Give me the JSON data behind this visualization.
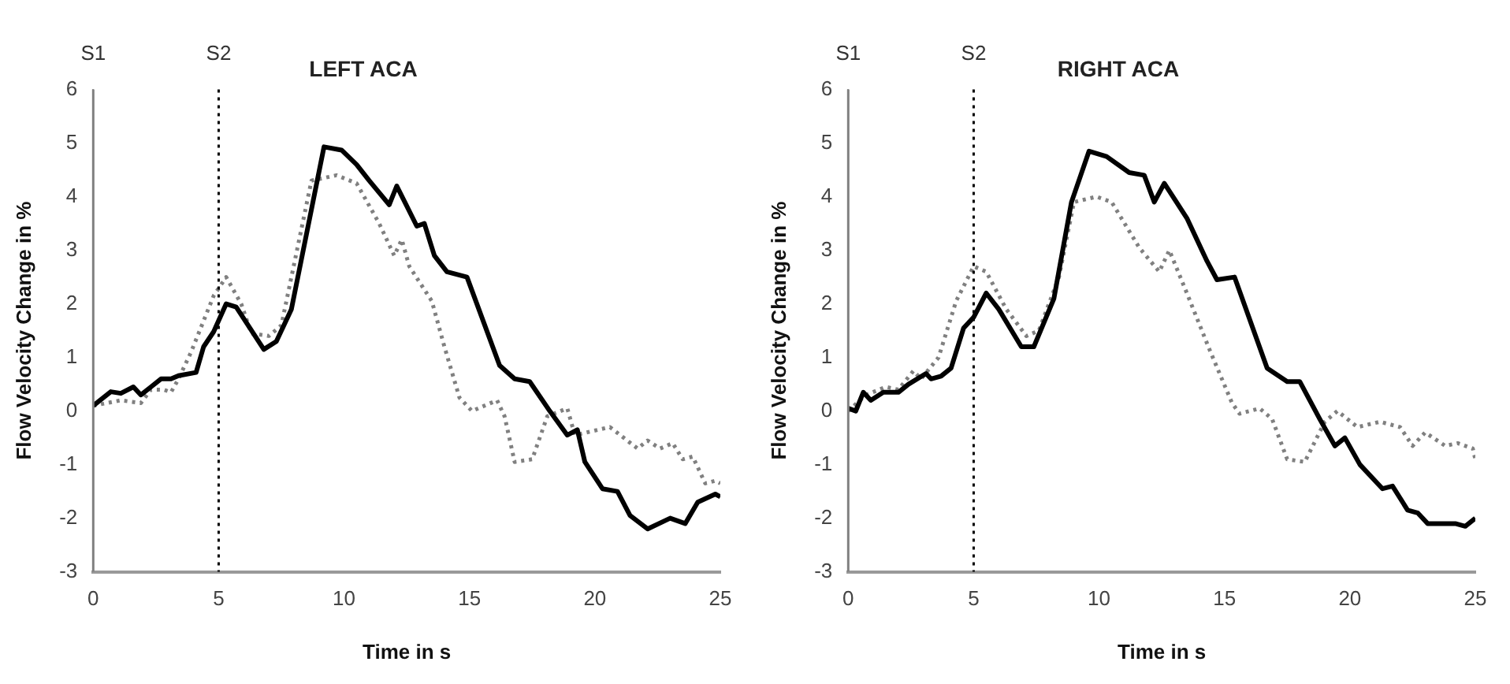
{
  "chart_data": [
    {
      "type": "line",
      "title": "LEFT ACA",
      "xlabel": "Time in s",
      "ylabel": "Flow Velocity Change in %",
      "marker": "none",
      "grid": false,
      "xlim": [
        0,
        25
      ],
      "xticks": [
        0,
        5,
        10,
        15,
        20,
        25
      ],
      "ylim": [
        -3,
        6
      ],
      "yticks": [
        -3,
        -2,
        -1,
        0,
        1,
        2,
        3,
        4,
        5,
        6
      ],
      "ref_lines": [
        {
          "axis": "x",
          "value": 0,
          "label": "S1",
          "color": "#808080",
          "line_style": "solid"
        },
        {
          "axis": "x",
          "value": 5,
          "label": "S2",
          "color": "#000000",
          "line_style": "dotted"
        }
      ],
      "series": [
        {
          "color": "#000000",
          "line_style": "solid",
          "x": [
            0,
            0.7,
            1.1,
            1.6,
            1.9,
            2.3,
            2.7,
            3.1,
            3.4,
            4.1,
            4.4,
            4.8,
            5.3,
            5.7,
            6.8,
            7.3,
            7.9,
            9.2,
            9.9,
            10.5,
            11.0,
            11.8,
            12.1,
            12.9,
            13.2,
            13.6,
            14.1,
            14.9,
            16.2,
            16.8,
            17.4,
            18.2,
            18.9,
            19.3,
            19.6,
            20.3,
            20.9,
            21.4,
            22.1,
            23.0,
            23.6,
            24.1,
            24.8,
            25
          ],
          "values": [
            0.1,
            0.36,
            0.33,
            0.45,
            0.3,
            0.45,
            0.6,
            0.6,
            0.66,
            0.72,
            1.2,
            1.48,
            2.0,
            1.94,
            1.15,
            1.3,
            1.9,
            4.93,
            4.87,
            4.6,
            4.3,
            3.85,
            4.2,
            3.45,
            3.5,
            2.9,
            2.6,
            2.5,
            0.85,
            0.6,
            0.55,
            0,
            -0.45,
            -0.35,
            -0.95,
            -1.45,
            -1.5,
            -1.95,
            -2.2,
            -2.0,
            -2.1,
            -1.7,
            -1.55,
            -1.6
          ]
        },
        {
          "color": "#808080",
          "line_style": "dotted",
          "x": [
            0,
            1.1,
            1.9,
            2.3,
            2.8,
            3.1,
            3.4,
            3.9,
            4.8,
            5.3,
            5.9,
            6.3,
            7.0,
            7.5,
            8.7,
            9.7,
            10.5,
            11.4,
            12.0,
            12.3,
            12.6,
            13.5,
            14.0,
            14.6,
            15.1,
            16.1,
            16.4,
            16.8,
            17.5,
            18.1,
            18.9,
            19.2,
            20.6,
            21.7,
            22.1,
            22.6,
            23.1,
            23.5,
            23.9,
            24.4,
            24.8,
            25
          ],
          "values": [
            0.1,
            0.2,
            0.15,
            0.4,
            0.4,
            0.35,
            0.6,
            1.1,
            2.15,
            2.5,
            2.0,
            1.45,
            1.4,
            1.6,
            4.3,
            4.4,
            4.25,
            3.5,
            2.9,
            3.2,
            2.7,
            2.05,
            1.2,
            0.25,
            0,
            0.2,
            -0.1,
            -0.95,
            -0.9,
            -0.1,
            0.05,
            -0.45,
            -0.3,
            -0.7,
            -0.55,
            -0.7,
            -0.6,
            -0.9,
            -0.85,
            -1.35,
            -1.3,
            -1.35
          ]
        }
      ]
    },
    {
      "type": "line",
      "title": "RIGHT ACA",
      "xlabel": "Time in s",
      "ylabel": "Flow Velocity Change in %",
      "marker": "none",
      "grid": false,
      "xlim": [
        0,
        25
      ],
      "xticks": [
        0,
        5,
        10,
        15,
        20,
        25
      ],
      "ylim": [
        -3,
        6
      ],
      "yticks": [
        -3,
        -2,
        -1,
        0,
        1,
        2,
        3,
        4,
        5,
        6
      ],
      "ref_lines": [
        {
          "axis": "x",
          "value": 0,
          "label": "S1",
          "color": "#808080",
          "line_style": "solid"
        },
        {
          "axis": "x",
          "value": 5,
          "label": "S2",
          "color": "#000000",
          "line_style": "dotted"
        }
      ],
      "series": [
        {
          "color": "#000000",
          "line_style": "solid",
          "x": [
            0,
            0.3,
            0.6,
            0.9,
            1.4,
            2.0,
            2.4,
            3.1,
            3.3,
            3.7,
            4.1,
            4.6,
            5.0,
            5.5,
            6.0,
            6.9,
            7.4,
            8.2,
            8.9,
            9.6,
            10.3,
            11.2,
            11.8,
            12.2,
            12.6,
            13.5,
            14.3,
            14.7,
            15.4,
            16.7,
            17.5,
            18.0,
            18.8,
            19.4,
            19.8,
            20.4,
            21.3,
            21.7,
            22.3,
            22.7,
            23.1,
            24.2,
            24.6,
            25
          ],
          "values": [
            0.05,
            0,
            0.35,
            0.2,
            0.35,
            0.35,
            0.5,
            0.7,
            0.6,
            0.65,
            0.8,
            1.55,
            1.75,
            2.2,
            1.9,
            1.2,
            1.2,
            2.1,
            3.9,
            4.85,
            4.75,
            4.45,
            4.4,
            3.9,
            4.25,
            3.6,
            2.8,
            2.45,
            2.5,
            0.8,
            0.55,
            0.55,
            -0.15,
            -0.65,
            -0.5,
            -1.0,
            -1.45,
            -1.4,
            -1.85,
            -1.9,
            -2.1,
            -2.1,
            -2.15,
            -2.0
          ]
        },
        {
          "color": "#808080",
          "line_style": "dotted",
          "x": [
            0,
            0.7,
            1.5,
            2.0,
            2.6,
            2.9,
            3.6,
            4.3,
            5.0,
            5.5,
            6.3,
            7.1,
            7.6,
            8.4,
            9.0,
            9.9,
            10.5,
            11.6,
            12.4,
            12.8,
            13.5,
            14.4,
            15.3,
            15.6,
            16.4,
            16.9,
            17.5,
            18.2,
            19.0,
            19.5,
            20.3,
            21.2,
            22.0,
            22.5,
            23.0,
            23.8,
            24.3,
            24.9,
            25
          ],
          "values": [
            0,
            0.3,
            0.45,
            0.4,
            0.75,
            0.6,
            1.0,
            2.05,
            2.7,
            2.6,
            1.9,
            1.4,
            1.5,
            2.5,
            3.9,
            4.0,
            3.9,
            3.05,
            2.6,
            3.0,
            2.2,
            1.15,
            0.15,
            -0.05,
            0.05,
            -0.15,
            -0.9,
            -0.95,
            -0.2,
            0,
            -0.3,
            -0.2,
            -0.3,
            -0.65,
            -0.4,
            -0.65,
            -0.6,
            -0.7,
            -0.9
          ]
        }
      ]
    }
  ]
}
